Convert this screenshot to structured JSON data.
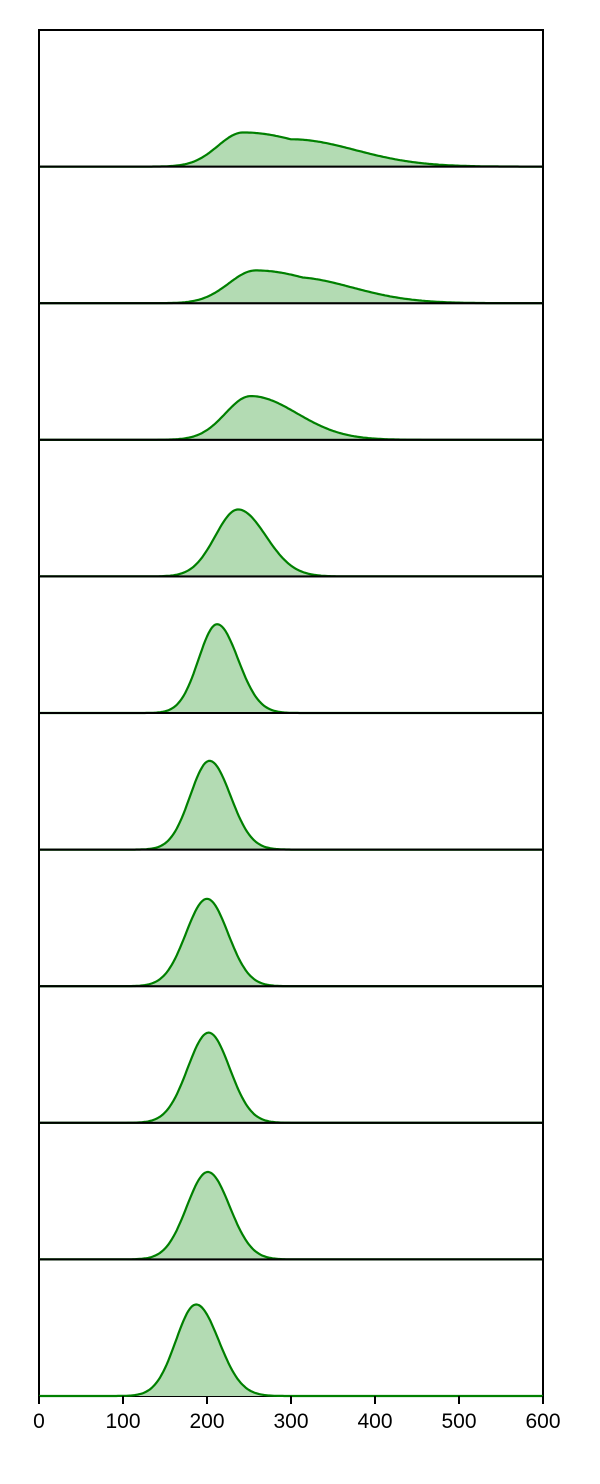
{
  "chart_data": {
    "type": "area",
    "layout": "stacked-panels",
    "xlim": [
      0,
      600
    ],
    "xticks": [
      0,
      100,
      200,
      300,
      400,
      500,
      600
    ],
    "xtick_labels": [
      "0",
      "100",
      "200",
      "300",
      "400",
      "500",
      "600"
    ],
    "y_axis": "hidden",
    "grid": false,
    "legend": "none",
    "colors": {
      "line": "#008000",
      "fill": "#b3dbb3",
      "axes": "#000000"
    },
    "panels": [
      {
        "peak_x": 243,
        "spread_left": 30,
        "spread_right": 85,
        "shoulder_x": 300,
        "peak_height": 0.25
      },
      {
        "peak_x": 258,
        "spread_left": 32,
        "spread_right": 80,
        "shoulder_x": 300,
        "peak_height": 0.24
      },
      {
        "peak_x": 252,
        "spread_left": 30,
        "spread_right": 55,
        "peak_height": 0.32
      },
      {
        "peak_x": 237,
        "spread_left": 27,
        "spread_right": 33,
        "peak_height": 0.49
      },
      {
        "peak_x": 212,
        "spread_left": 22,
        "spread_right": 25,
        "peak_height": 0.65
      },
      {
        "peak_x": 203,
        "spread_left": 23,
        "spread_right": 25,
        "peak_height": 0.65
      },
      {
        "peak_x": 200,
        "spread_left": 25,
        "spread_right": 25,
        "peak_height": 0.64
      },
      {
        "peak_x": 202,
        "spread_left": 25,
        "spread_right": 25,
        "peak_height": 0.66
      },
      {
        "peak_x": 201,
        "spread_left": 25,
        "spread_right": 26,
        "peak_height": 0.64
      },
      {
        "peak_x": 187,
        "spread_left": 24,
        "spread_right": 27,
        "peak_height": 0.67
      }
    ]
  }
}
